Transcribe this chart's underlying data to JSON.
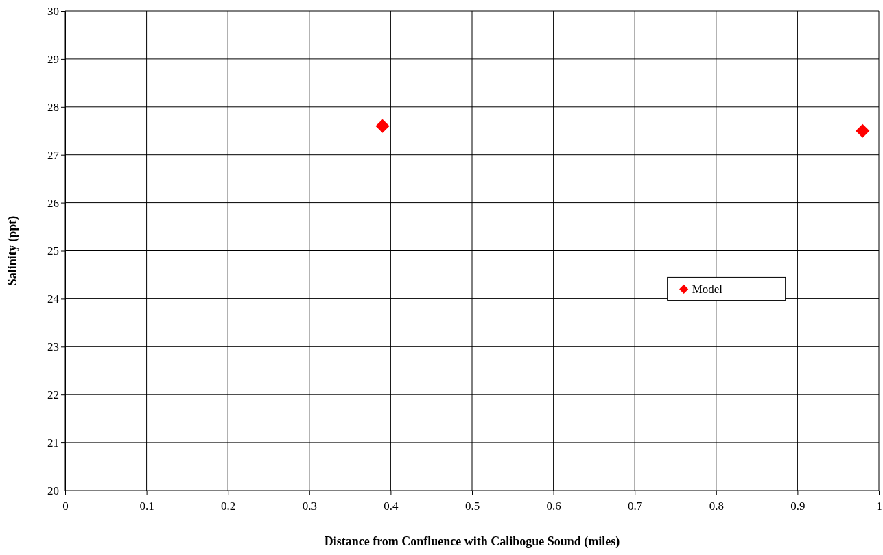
{
  "chart_data": {
    "type": "scatter",
    "xlabel": "Distance from Confluence with Calibogue Sound (miles)",
    "ylabel": "Salinity (ppt)",
    "series": [
      {
        "name": "Model",
        "color": "#ff0000",
        "x": [
          0.39,
          0.98
        ],
        "values": [
          27.6,
          27.5
        ]
      }
    ],
    "xlim": [
      0,
      1
    ],
    "xticks": [
      0,
      0.1,
      0.2,
      0.3,
      0.4,
      0.5,
      0.6,
      0.7,
      0.8,
      0.9,
      1
    ],
    "ylim": [
      20,
      30
    ],
    "yticks": [
      20,
      21,
      22,
      23,
      24,
      25,
      26,
      27,
      28,
      29,
      30
    ],
    "grid": true,
    "legend": "right",
    "marker": "diamond"
  }
}
